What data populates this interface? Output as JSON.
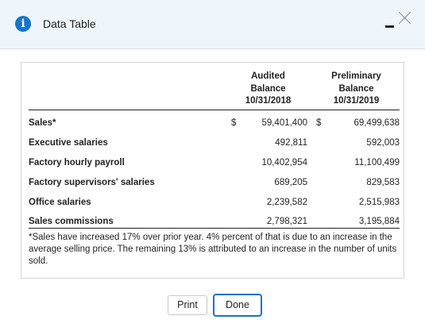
{
  "window": {
    "title": "Data Table",
    "info_icon": "i",
    "colors": {
      "titlebar_bg": "#eef5fb",
      "info_icon_bg": "#1874c9",
      "done_border": "#1a73c7"
    }
  },
  "table": {
    "columns": [
      {
        "line1": "Audited",
        "line2": "Balance",
        "line3": "10/31/2018"
      },
      {
        "line1": "Preliminary",
        "line2": "Balance",
        "line3": "10/31/2019"
      }
    ],
    "rows": [
      {
        "label": "Sales*",
        "cur1": "$",
        "v1": "59,401,400",
        "cur2": "$",
        "v2": "69,499,638"
      },
      {
        "label": "Executive salaries",
        "cur1": "",
        "v1": "492,811",
        "cur2": "",
        "v2": "592,003"
      },
      {
        "label": "Factory hourly payroll",
        "cur1": "",
        "v1": "10,402,954",
        "cur2": "",
        "v2": "11,100,499"
      },
      {
        "label": "Factory supervisors' salaries",
        "cur1": "",
        "v1": "689,205",
        "cur2": "",
        "v2": "829,583"
      },
      {
        "label": "Office salaries",
        "cur1": "",
        "v1": "2,239,582",
        "cur2": "",
        "v2": "2,515,983"
      },
      {
        "label": "Sales commissions",
        "cur1": "",
        "v1": "2,798,321",
        "cur2": "",
        "v2": "3,195,884"
      }
    ],
    "footnote": "*Sales have increased 17% over prior year. 4% percent of that is due to an increase in the average selling price. The remaining 13% is attributed to an increase in the number of units sold."
  },
  "buttons": {
    "print_label": "Print",
    "done_label": "Done"
  }
}
